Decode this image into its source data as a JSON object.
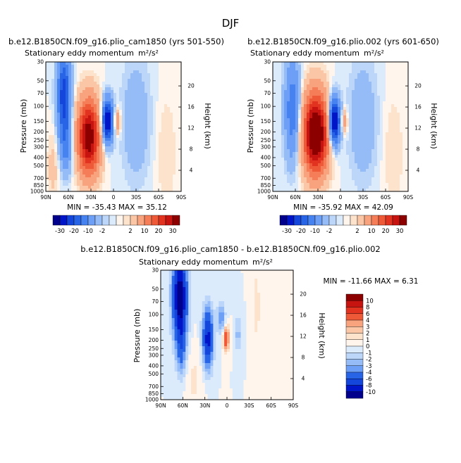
{
  "page_title": "DJF",
  "colors": {
    "scale": [
      "#00008c",
      "#0014c8",
      "#1446dc",
      "#2864e6",
      "#4682f0",
      "#6e9ff6",
      "#96bcf8",
      "#bcd6fa",
      "#dcebfc",
      "#fff5ec",
      "#fde2cc",
      "#fbc6a6",
      "#f8a27e",
      "#f57e58",
      "#ee5a38",
      "#e23220",
      "#c81410",
      "#8c0000"
    ]
  },
  "chart_data": [
    {
      "type": "contour",
      "title": "b.e12.B1850CN.f09_g16.plio_cam1850 (yrs 501-550)",
      "subtitle": "Stationary eddy momentum",
      "units": "m²/s²",
      "xlabel": "",
      "ylabel": "Pressure (mb)",
      "ylabel_right": "Height (km)",
      "x_ticks": [
        "90N",
        "60N",
        "30N",
        "0",
        "30S",
        "60S",
        "90S"
      ],
      "y_ticks": [
        "30",
        "50",
        "70",
        "100",
        "150",
        "200",
        "250",
        "300",
        "400",
        "500",
        "700",
        "850",
        "1000"
      ],
      "y_ticks_right": [
        "20",
        "16",
        "12",
        "8",
        "4"
      ],
      "stats": "MIN = -35.43   MAX =  35.12",
      "min": -35.43,
      "max": 35.12,
      "levels": [
        -30,
        -25,
        -20,
        -15,
        -10,
        -5,
        -2,
        -1,
        0,
        1,
        2,
        5,
        10,
        15,
        20,
        25,
        30
      ],
      "colorbar_labels": [
        "-30",
        "-20",
        "-10",
        "-2",
        "2",
        "10",
        "20",
        "30"
      ],
      "features": [
        {
          "lat": 66,
          "p": 75,
          "amp": -24,
          "slat": 6,
          "slogp": 0.33
        },
        {
          "lat": 63,
          "p": 300,
          "amp": -10,
          "slat": 6,
          "slogp": 0.22
        },
        {
          "lat": 33,
          "p": 230,
          "amp": 35,
          "slat": 10,
          "slogp": 0.3
        },
        {
          "lat": 8,
          "p": 150,
          "amp": -33,
          "slat": 5,
          "slogp": 0.17
        },
        {
          "lat": -5,
          "p": 150,
          "amp": 10,
          "slat": 3,
          "slogp": 0.1
        },
        {
          "lat": -30,
          "p": 150,
          "amp": -4,
          "slat": 14,
          "slogp": 0.5
        },
        {
          "lat": -70,
          "p": 350,
          "amp": 2,
          "slat": 10,
          "slogp": 0.5
        },
        {
          "lat": 80,
          "p": 500,
          "amp": 3,
          "slat": 6,
          "slogp": 0.3
        }
      ]
    },
    {
      "type": "contour",
      "title": "b.e12.B1850CN.f09_g16.plio.002 (yrs 601-650)",
      "subtitle": "Stationary eddy momentum",
      "units": "m²/s²",
      "xlabel": "",
      "ylabel": "Pressure (mb)",
      "ylabel_right": "Height (km)",
      "x_ticks": [
        "90N",
        "60N",
        "30N",
        "0",
        "30S",
        "60S",
        "90S"
      ],
      "y_ticks": [
        "30",
        "50",
        "70",
        "100",
        "150",
        "200",
        "250",
        "300",
        "400",
        "500",
        "700",
        "850",
        "1000"
      ],
      "y_ticks_right": [
        "20",
        "16",
        "12",
        "8",
        "4"
      ],
      "stats": "MIN = -35.92   MAX =  42.09",
      "min": -35.92,
      "max": 42.09,
      "levels": [
        -30,
        -25,
        -20,
        -15,
        -10,
        -5,
        -2,
        -1,
        0,
        1,
        2,
        5,
        10,
        15,
        20,
        25,
        30
      ],
      "colorbar_labels": [
        "-30",
        "-20",
        "-10",
        "-2",
        "2",
        "10",
        "20",
        "30"
      ],
      "features": [
        {
          "lat": 64,
          "p": 110,
          "amp": -14,
          "slat": 7,
          "slogp": 0.4
        },
        {
          "lat": 33,
          "p": 210,
          "amp": 42,
          "slat": 11,
          "slogp": 0.32
        },
        {
          "lat": 8,
          "p": 150,
          "amp": -34,
          "slat": 5,
          "slogp": 0.18
        },
        {
          "lat": -5,
          "p": 150,
          "amp": 8,
          "slat": 3,
          "slogp": 0.1
        },
        {
          "lat": -30,
          "p": 150,
          "amp": -4,
          "slat": 14,
          "slogp": 0.5
        },
        {
          "lat": -70,
          "p": 350,
          "amp": 2,
          "slat": 10,
          "slogp": 0.5
        }
      ]
    },
    {
      "type": "contour",
      "title": "b.e12.B1850CN.f09_g16.plio_cam1850 - b.e12.B1850CN.f09_g16.plio.002",
      "subtitle": "Stationary eddy momentum",
      "units": "m²/s²",
      "xlabel": "",
      "ylabel": "Pressure (mb)",
      "ylabel_right": "Height (km)",
      "x_ticks": [
        "90N",
        "60N",
        "30N",
        "0",
        "30S",
        "60S",
        "90S"
      ],
      "y_ticks": [
        "30",
        "50",
        "70",
        "100",
        "150",
        "200",
        "250",
        "300",
        "400",
        "500",
        "700",
        "850",
        "1000"
      ],
      "y_ticks_right": [
        "20",
        "16",
        "12",
        "8",
        "4"
      ],
      "stats": "MIN = -11.66   MAX =    6.31",
      "min": -11.66,
      "max": 6.31,
      "levels": [
        -10,
        -8,
        -6,
        -4,
        -3,
        -2,
        -1,
        0,
        1,
        2,
        3,
        4,
        6,
        8,
        10
      ],
      "colorbar_labels": [
        "10",
        "8",
        "6",
        "4",
        "3",
        "2",
        "1",
        "0",
        "-1",
        "-2",
        "-3",
        "-4",
        "-6",
        "-8",
        "-10"
      ],
      "features": [
        {
          "lat": 64,
          "p": 60,
          "amp": -11.7,
          "slat": 7,
          "slogp": 0.35
        },
        {
          "lat": 62,
          "p": 250,
          "amp": -4,
          "slat": 5,
          "slogp": 0.25
        },
        {
          "lat": 26,
          "p": 190,
          "amp": -9,
          "slat": 5,
          "slogp": 0.25
        },
        {
          "lat": 8,
          "p": 110,
          "amp": -4,
          "slat": 4,
          "slogp": 0.12
        },
        {
          "lat": 1,
          "p": 190,
          "amp": 6.3,
          "slat": 3,
          "slogp": 0.1
        },
        {
          "lat": -15,
          "p": 170,
          "amp": -2.5,
          "slat": 3,
          "slogp": 0.15
        },
        {
          "lat": 45,
          "p": 600,
          "amp": 1.2,
          "slat": 10,
          "slogp": 0.3
        },
        {
          "lat": -40,
          "p": 80,
          "amp": 1.5,
          "slat": 4,
          "slogp": 0.35
        }
      ]
    }
  ]
}
